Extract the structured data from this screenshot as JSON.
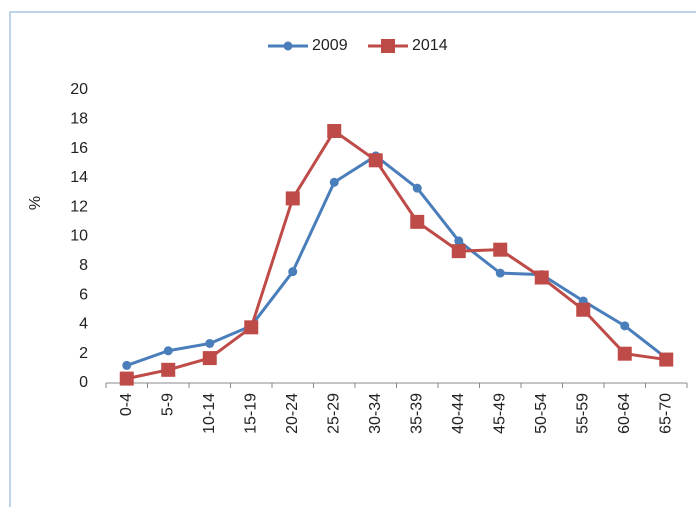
{
  "chart_data": {
    "type": "line",
    "y_label": "%",
    "categories": [
      "0-4",
      "5-9",
      "10-14",
      "15-19",
      "20-24",
      "25-29",
      "30-34",
      "35-39",
      "40-44",
      "45-49",
      "50-54",
      "55-59",
      "60-64",
      "65-70"
    ],
    "series": [
      {
        "name": "2009",
        "color": "#4a7ebb",
        "marker": "circle",
        "values": [
          1.2,
          2.2,
          2.7,
          3.9,
          7.6,
          13.7,
          15.5,
          13.3,
          9.7,
          7.5,
          7.4,
          5.6,
          3.9,
          1.7
        ]
      },
      {
        "name": "2014",
        "color": "#be4b48",
        "marker": "square",
        "values": [
          0.3,
          0.9,
          1.7,
          3.8,
          12.6,
          17.2,
          15.2,
          11.0,
          9.0,
          9.1,
          7.2,
          5.0,
          2.0,
          1.6
        ]
      }
    ],
    "ylim": [
      0,
      20
    ],
    "yticks": [
      0,
      2,
      4,
      6,
      8,
      10,
      12,
      14,
      16,
      18,
      20
    ],
    "grid": false,
    "legend": "top"
  }
}
